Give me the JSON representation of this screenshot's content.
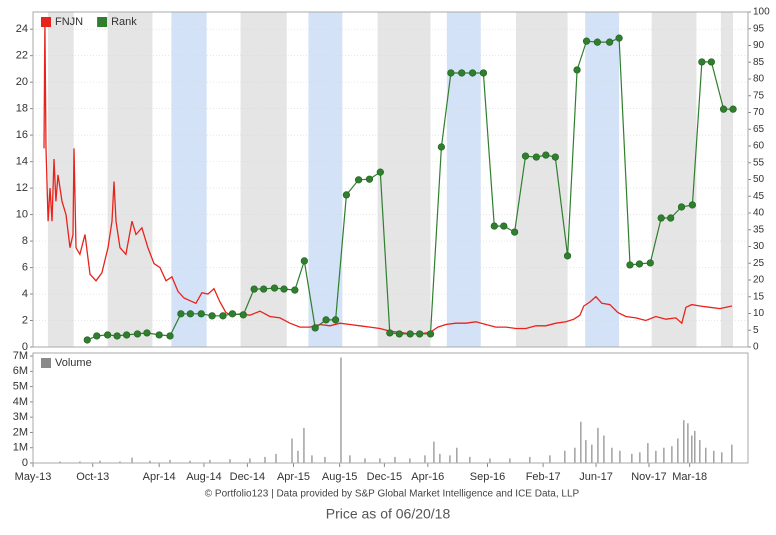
{
  "chart_data": [
    {
      "type": "line",
      "legend": "upper left",
      "grid": true,
      "xlim": [
        2013.33,
        2018.6
      ],
      "ylim": [
        0,
        25.3
      ],
      "y2lim": [
        0,
        100
      ],
      "yticks": [
        0,
        2,
        4,
        6,
        8,
        10,
        12,
        14,
        16,
        18,
        20,
        22,
        24
      ],
      "y2ticks": [
        0,
        5,
        10,
        15,
        20,
        25,
        30,
        35,
        40,
        45,
        50,
        55,
        60,
        65,
        70,
        75,
        80,
        85,
        90,
        95,
        100
      ],
      "shading": [
        {
          "x0": 2013.44,
          "x1": 2013.63,
          "color": "#e5e5e5"
        },
        {
          "x0": 2013.88,
          "x1": 2014.21,
          "color": "#e5e5e5"
        },
        {
          "x0": 2014.35,
          "x1": 2014.61,
          "color": "#d3e2f6"
        },
        {
          "x0": 2014.86,
          "x1": 2015.2,
          "color": "#e5e5e5"
        },
        {
          "x0": 2015.36,
          "x1": 2015.61,
          "color": "#d3e2f6"
        },
        {
          "x0": 2015.87,
          "x1": 2016.26,
          "color": "#e5e5e5"
        },
        {
          "x0": 2016.38,
          "x1": 2016.63,
          "color": "#d3e2f6"
        },
        {
          "x0": 2016.89,
          "x1": 2017.27,
          "color": "#e5e5e5"
        },
        {
          "x0": 2017.4,
          "x1": 2017.65,
          "color": "#d3e2f6"
        },
        {
          "x0": 2017.89,
          "x1": 2018.22,
          "color": "#e5e5e5"
        },
        {
          "x0": 2018.4,
          "x1": 2018.49,
          "color": "#e5e5e5"
        }
      ],
      "series": [
        {
          "name": "FNJN",
          "color": "#e8231c",
          "axis": "y",
          "x": [
            2013.411,
            2013.418,
            2013.426,
            2013.441,
            2013.455,
            2013.47,
            2013.485,
            2013.499,
            2013.514,
            2013.544,
            2013.573,
            2013.603,
            2013.625,
            2013.632,
            2013.647,
            2013.676,
            2013.713,
            2013.75,
            2013.794,
            2013.838,
            2013.883,
            2013.912,
            2013.927,
            2013.942,
            2013.971,
            2014.015,
            2014.06,
            2014.089,
            2014.133,
            2014.177,
            2014.222,
            2014.266,
            2014.31,
            2014.354,
            2014.399,
            2014.443,
            2014.487,
            2014.531,
            2014.575,
            2014.62,
            2014.664,
            2014.708,
            2014.752,
            2014.796,
            2014.855,
            2014.929,
            2015.003,
            2015.076,
            2015.15,
            2015.224,
            2015.298,
            2015.371,
            2015.445,
            2015.519,
            2015.592,
            2015.666,
            2015.74,
            2015.813,
            2015.887,
            2015.961,
            2016.034,
            2016.108,
            2016.182,
            2016.256,
            2016.314,
            2016.373,
            2016.447,
            2016.521,
            2016.594,
            2016.668,
            2016.742,
            2016.816,
            2016.889,
            2016.963,
            2017.037,
            2017.11,
            2017.184,
            2017.258,
            2017.317,
            2017.361,
            2017.39,
            2017.435,
            2017.479,
            2017.523,
            2017.582,
            2017.641,
            2017.7,
            2017.774,
            2017.847,
            2017.921,
            2017.995,
            2018.068,
            2018.112,
            2018.142,
            2018.186,
            2018.245,
            2018.319,
            2018.393,
            2018.481
          ],
          "values": [
            15,
            24.5,
            15,
            9.5,
            12,
            9.5,
            14.2,
            11,
            13,
            11,
            10,
            7.5,
            8.5,
            15,
            7.5,
            7,
            8.5,
            5.5,
            5.0,
            5.6,
            7.5,
            9.5,
            12.5,
            9.5,
            7.5,
            7.0,
            9.5,
            8.5,
            9,
            7.5,
            6.3,
            6,
            5.0,
            5.3,
            4.2,
            3.7,
            3.5,
            3.3,
            4.1,
            4.0,
            4.4,
            3.4,
            2.6,
            2.4,
            2.5,
            2.4,
            2.7,
            2.3,
            2.2,
            1.8,
            1.5,
            1.5,
            1.7,
            1.6,
            1.8,
            1.7,
            1.6,
            1.5,
            1.4,
            1.2,
            1.1,
            1.0,
            1.0,
            1.1,
            1.5,
            1.7,
            1.8,
            1.8,
            1.9,
            1.7,
            1.5,
            1.5,
            1.4,
            1.4,
            1.6,
            1.6,
            1.8,
            1.9,
            2.1,
            2.4,
            3.1,
            3.4,
            3.8,
            3.3,
            3.2,
            2.6,
            2.3,
            2.2,
            2.0,
            2.3,
            2.1,
            2.2,
            1.8,
            3.0,
            3.2,
            3.1,
            3.0,
            2.9,
            3.1
          ]
        },
        {
          "name": "Rank",
          "color": "#2f7f2f",
          "axis": "y2",
          "markers": true,
          "x": [
            2013.73,
            2013.8,
            2013.88,
            2013.95,
            2014.02,
            2014.1,
            2014.17,
            2014.26,
            2014.34,
            2014.42,
            2014.49,
            2014.57,
            2014.65,
            2014.73,
            2014.8,
            2014.88,
            2014.96,
            2015.03,
            2015.11,
            2015.18,
            2015.26,
            2015.33,
            2015.41,
            2015.49,
            2015.56,
            2015.64,
            2015.73,
            2015.81,
            2015.89,
            2015.96,
            2016.03,
            2016.11,
            2016.18,
            2016.26,
            2016.34,
            2016.41,
            2016.49,
            2016.57,
            2016.65,
            2016.73,
            2016.8,
            2016.88,
            2016.96,
            2017.04,
            2017.11,
            2017.18,
            2017.27,
            2017.34,
            2017.41,
            2017.49,
            2017.58,
            2017.65,
            2017.73,
            2017.8,
            2017.88,
            2017.96,
            2018.03,
            2018.11,
            2018.19,
            2018.26,
            2018.33,
            2018.42,
            2018.49
          ],
          "values": [
            2.1,
            3.3,
            3.6,
            3.3,
            3.6,
            3.9,
            4.2,
            3.6,
            3.3,
            9.9,
            9.9,
            9.9,
            9.3,
            9.3,
            9.9,
            9.6,
            17.3,
            17.3,
            17.6,
            17.3,
            17,
            25.7,
            5.7,
            8.1,
            8.1,
            45.4,
            49.9,
            50.1,
            52.2,
            4.2,
            3.9,
            3.9,
            3.9,
            3.9,
            59.7,
            81.8,
            81.8,
            81.8,
            81.8,
            36.1,
            36.1,
            34.3,
            57,
            56.7,
            57.3,
            56.7,
            27.2,
            82.7,
            91.3,
            91,
            91,
            92.2,
            24.5,
            24.8,
            25.1,
            38.5,
            38.5,
            41.8,
            42.4,
            85.1,
            85.1,
            71,
            71
          ]
        }
      ]
    },
    {
      "type": "bar",
      "legend": "upper left",
      "xlim": [
        2013.33,
        2018.6
      ],
      "ylim": [
        0,
        7200000
      ],
      "xticks": [
        {
          "value": 2013.33,
          "label": "May-13"
        },
        {
          "value": 2013.77,
          "label": "Oct-13"
        },
        {
          "value": 2014.26,
          "label": "Apr-14"
        },
        {
          "value": 2014.59,
          "label": "Aug-14"
        },
        {
          "value": 2014.91,
          "label": "Dec-14"
        },
        {
          "value": 2015.25,
          "label": "Apr-15"
        },
        {
          "value": 2015.59,
          "label": "Aug-15"
        },
        {
          "value": 2015.92,
          "label": "Dec-15"
        },
        {
          "value": 2016.24,
          "label": "Apr-16"
        },
        {
          "value": 2016.68,
          "label": "Sep-16"
        },
        {
          "value": 2017.09,
          "label": "Feb-17"
        },
        {
          "value": 2017.48,
          "label": "Jun-17"
        },
        {
          "value": 2017.87,
          "label": "Nov-17"
        },
        {
          "value": 2018.17,
          "label": "Mar-18"
        }
      ],
      "yticks": [
        0,
        {
          "value": 1000000,
          "label": "1M"
        },
        {
          "value": 2000000,
          "label": "2M"
        },
        {
          "value": 3000000,
          "label": "3M"
        },
        {
          "value": 4000000,
          "label": "4M"
        },
        {
          "value": 5000000,
          "label": "5M"
        },
        {
          "value": 6000000,
          "label": "6M"
        },
        {
          "value": 7000000,
          "label": "7M"
        }
      ],
      "series": [
        {
          "name": "Volume",
          "color": "#8a8a8a",
          "x": [
            2013.529,
            2013.676,
            2013.824,
            2013.971,
            2014.06,
            2014.192,
            2014.34,
            2014.487,
            2014.634,
            2014.782,
            2014.929,
            2015.04,
            2015.121,
            2015.239,
            2015.283,
            2015.327,
            2015.386,
            2015.482,
            2015.6,
            2015.666,
            2015.777,
            2015.887,
            2015.998,
            2016.108,
            2016.219,
            2016.285,
            2016.329,
            2016.403,
            2016.454,
            2016.55,
            2016.698,
            2016.845,
            2016.992,
            2017.14,
            2017.25,
            2017.324,
            2017.368,
            2017.405,
            2017.449,
            2017.494,
            2017.538,
            2017.597,
            2017.656,
            2017.744,
            2017.803,
            2017.862,
            2017.921,
            2017.98,
            2018.039,
            2018.083,
            2018.127,
            2018.157,
            2018.186,
            2018.208,
            2018.245,
            2018.289,
            2018.348,
            2018.407,
            2018.481
          ],
          "values": [
            100000,
            100000,
            150000,
            100000,
            350000,
            150000,
            200000,
            150000,
            200000,
            250000,
            300000,
            400000,
            600000,
            1600000,
            800000,
            2300000,
            500000,
            400000,
            6900000,
            500000,
            300000,
            300000,
            400000,
            300000,
            500000,
            1400000,
            600000,
            500000,
            1000000,
            400000,
            300000,
            300000,
            400000,
            500000,
            800000,
            1000000,
            2700000,
            1500000,
            1200000,
            2300000,
            1800000,
            1000000,
            800000,
            600000,
            700000,
            1300000,
            800000,
            1000000,
            1100000,
            1600000,
            2800000,
            2600000,
            1800000,
            2100000,
            1500000,
            1000000,
            800000,
            700000,
            1200000
          ]
        }
      ]
    }
  ],
  "footer": "© Portfolio123 | Data provided by S&P Global Market Intelligence and ICE Data, LLP",
  "price_note": "Price as of 06/20/18"
}
